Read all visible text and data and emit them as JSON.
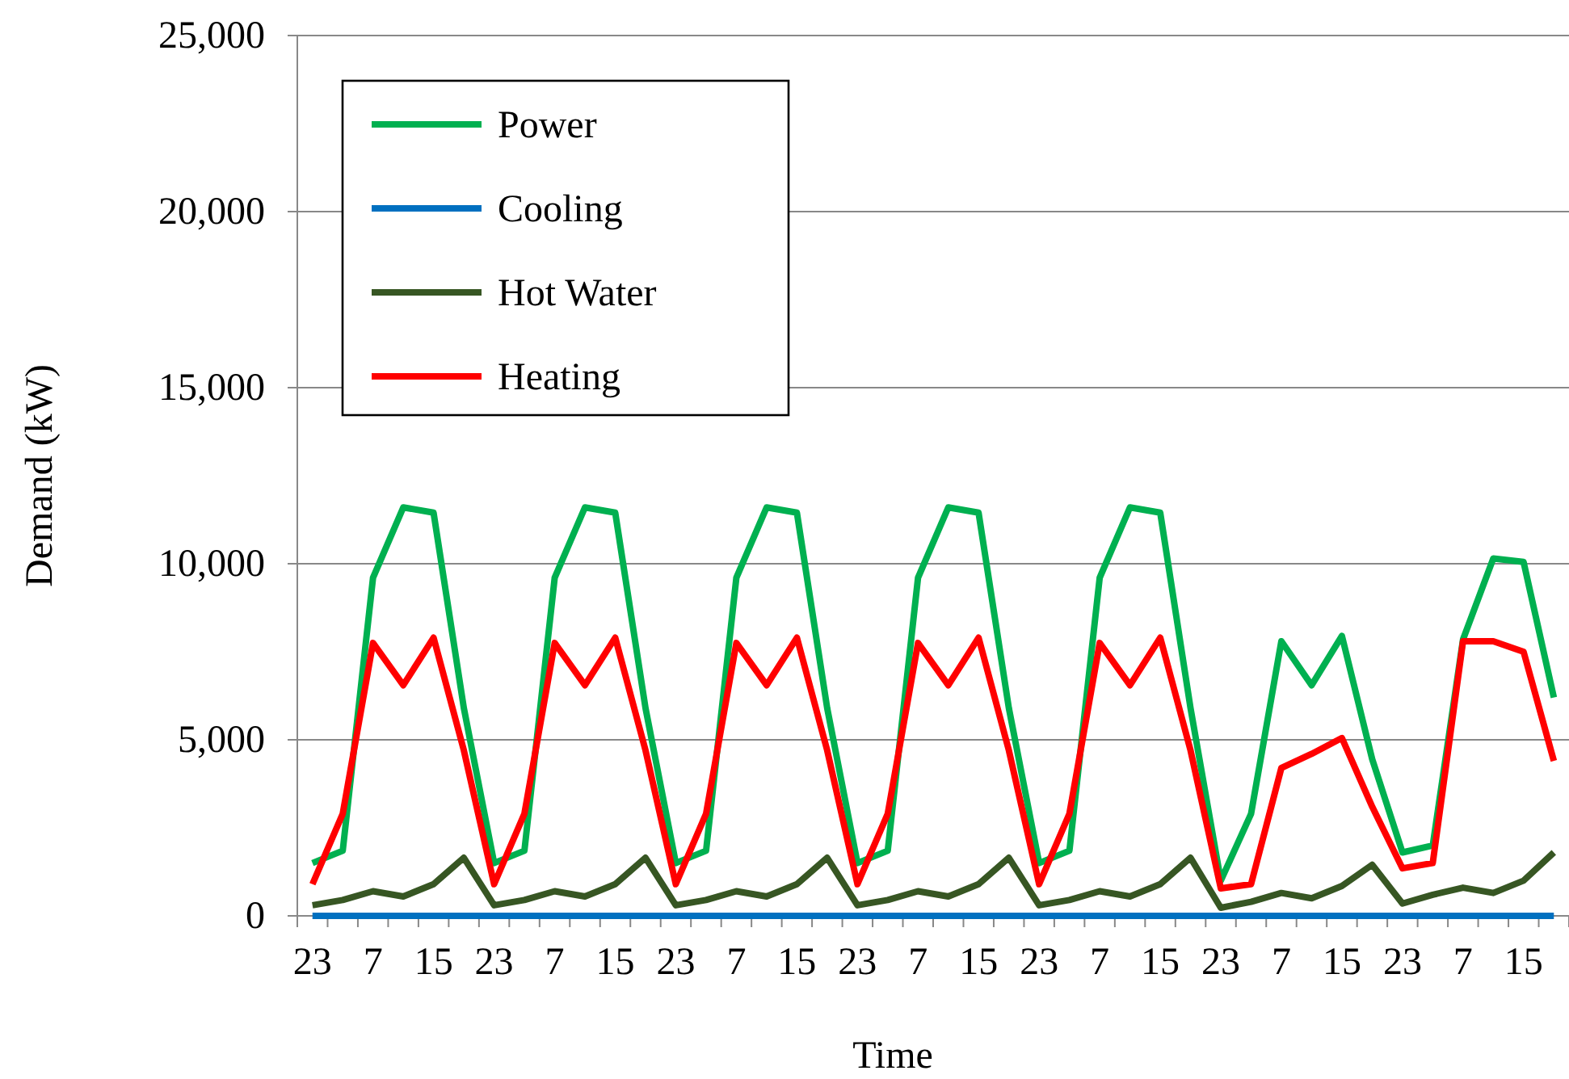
{
  "chart_data": {
    "type": "line",
    "xlabel": "Time",
    "ylabel": "Demand (kW)",
    "categories": [
      "23",
      null,
      "7",
      null,
      "15",
      null,
      "23",
      null,
      "7",
      null,
      "15",
      null,
      "23",
      null,
      "7",
      null,
      "15",
      null,
      "23",
      null,
      "7",
      null,
      "15",
      null,
      "23",
      null,
      "7",
      null,
      "15",
      null,
      "23",
      null,
      "7",
      null,
      "15",
      null,
      "23",
      null,
      "7",
      null,
      "15",
      null
    ],
    "series": [
      {
        "name": "Power",
        "color": "#00b050",
        "values": [
          1500,
          1850,
          9600,
          11600,
          11450,
          5900,
          1500,
          1850,
          9600,
          11600,
          11450,
          5900,
          1500,
          1850,
          9600,
          11600,
          11450,
          5900,
          1500,
          1850,
          9600,
          11600,
          11450,
          5900,
          1500,
          1850,
          9600,
          11600,
          11450,
          5900,
          1000,
          2900,
          7800,
          6550,
          7950,
          4450,
          1800,
          2000,
          7850,
          10150,
          10050,
          6200
        ]
      },
      {
        "name": "Cooling",
        "color": "#0070c0",
        "values": [
          0,
          0,
          0,
          0,
          0,
          0,
          0,
          0,
          0,
          0,
          0,
          0,
          0,
          0,
          0,
          0,
          0,
          0,
          0,
          0,
          0,
          0,
          0,
          0,
          0,
          0,
          0,
          0,
          0,
          0,
          0,
          0,
          0,
          0,
          0,
          0,
          0,
          0,
          0,
          0,
          0,
          0
        ]
      },
      {
        "name": "Hot Water",
        "color": "#375623",
        "values": [
          300,
          450,
          700,
          550,
          900,
          1650,
          300,
          450,
          700,
          550,
          900,
          1650,
          300,
          450,
          700,
          550,
          900,
          1650,
          300,
          450,
          700,
          550,
          900,
          1650,
          300,
          450,
          700,
          550,
          900,
          1650,
          230,
          400,
          650,
          500,
          850,
          1450,
          350,
          600,
          800,
          650,
          1000,
          1800
        ]
      },
      {
        "name": "Heating",
        "color": "#ff0000",
        "values": [
          900,
          2900,
          7750,
          6550,
          7900,
          4700,
          900,
          2900,
          7750,
          6550,
          7900,
          4700,
          900,
          2900,
          7750,
          6550,
          7900,
          4700,
          900,
          2900,
          7750,
          6550,
          7900,
          4700,
          900,
          2900,
          7750,
          6550,
          7900,
          4700,
          780,
          900,
          4200,
          4600,
          5050,
          3100,
          1350,
          1500,
          7800,
          7800,
          7500,
          4400
        ]
      }
    ],
    "ylim": [
      0,
      25000
    ],
    "yticks": [
      {
        "value": 0,
        "label": "0"
      },
      {
        "value": 5000,
        "label": "5,000"
      },
      {
        "value": 10000,
        "label": "10,000"
      },
      {
        "value": 15000,
        "label": "15,000"
      },
      {
        "value": 20000,
        "label": "20,000"
      },
      {
        "value": 25000,
        "label": "25,000"
      }
    ],
    "grid": "y",
    "legend": "top left",
    "marker": "none",
    "line_style": "solid"
  }
}
